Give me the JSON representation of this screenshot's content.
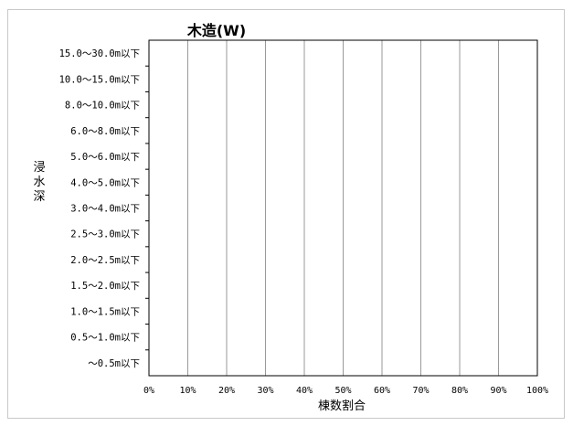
{
  "chart_data": {
    "type": "bar",
    "orientation": "horizontal",
    "title": "木造(W)",
    "xlabel": "棟数割合",
    "ylabel": "浸水深",
    "categories": [
      "15.0～30.0m以下",
      "10.0～15.0m以下",
      "8.0～10.0m以下",
      "6.0～8.0m以下",
      "5.0～6.0m以下",
      "4.0～5.0m以下",
      "3.0～4.0m以下",
      "2.5～3.0m以下",
      "2.0～2.5m以下",
      "1.5～2.0m以下",
      "1.0～1.5m以下",
      "0.5～1.0m以下",
      "～0.5m以下"
    ],
    "values": [
      0,
      0,
      0,
      0,
      0,
      0,
      0,
      0,
      0,
      0,
      0,
      0,
      0
    ],
    "xticks": [
      "0%",
      "10%",
      "20%",
      "30%",
      "40%",
      "50%",
      "60%",
      "70%",
      "80%",
      "90%",
      "100%"
    ],
    "xlim": [
      0,
      100
    ],
    "grid": true
  }
}
